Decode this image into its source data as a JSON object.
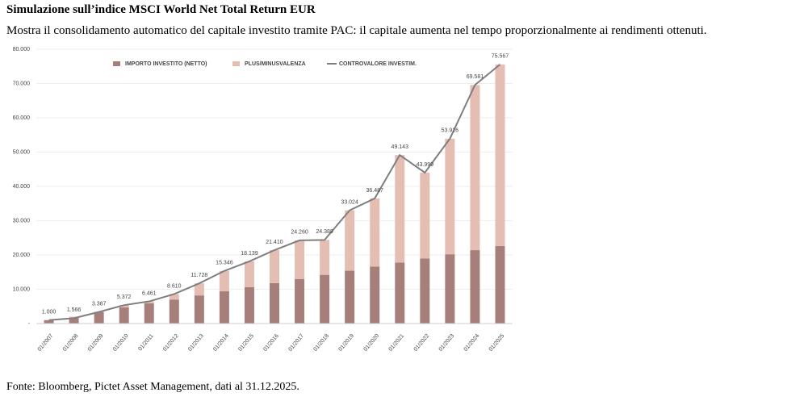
{
  "title": "Simulazione sull’indice MSCI World Net Total Return EUR",
  "subtitle": "Mostra il consolidamento automatico del capitale investito tramite PAC: il capitale aumenta nel tempo proporzionalmente ai rendimenti ottenuti.",
  "source": "Fonte: Bloomberg, Pictet Asset Management, dati al 31.12.2025.",
  "chart_data": {
    "type": "bar",
    "stacked": true,
    "grid": true,
    "legend": "top",
    "categories": [
      "01/2007",
      "01/2008",
      "01/2009",
      "01/2010",
      "01/2011",
      "01/2012",
      "01/2013",
      "01/2014",
      "01/2015",
      "01/2016",
      "01/2017",
      "01/2018",
      "01/2019",
      "01/2020",
      "01/2021",
      "01/2022",
      "01/2023",
      "01/2024",
      "01/2025"
    ],
    "series": [
      {
        "name": "IMPORTO INVESTITO (NETTO)",
        "type": "bar",
        "color": "#a67f7a",
        "values": [
          1000,
          2000,
          3387,
          4700,
          5900,
          7000,
          8200,
          9400,
          10600,
          11800,
          13000,
          14200,
          15400,
          16600,
          17800,
          19000,
          20200,
          21400,
          22600
        ]
      },
      {
        "name": "PLUS/MINUSVALENZA",
        "type": "bar",
        "color": "#e4beb3",
        "values": [
          0,
          -434,
          0,
          672,
          561,
          1610,
          3528,
          5946,
          7539,
          9610,
          11260,
          10188,
          17624,
          19887,
          31343,
          24999,
          33716,
          48181,
          52967
        ]
      },
      {
        "name": "CONTROVALORE INVESTIM.",
        "type": "line",
        "color": "#7f7f7f",
        "values": [
          1000,
          1566,
          3387,
          5372,
          6461,
          8610,
          11728,
          15346,
          18139,
          21410,
          24260,
          24388,
          33024,
          36487,
          49143,
          43999,
          53916,
          69581,
          75567
        ],
        "value_labels": [
          "1.000",
          "1.566",
          "3.387",
          "5.372",
          "6.461",
          "8.610",
          "11.728",
          "15.346",
          "18.139",
          "21.410",
          "24.260",
          "24.388",
          "33.024",
          "36.487",
          "49.143",
          "43.999",
          "53.916",
          "69.581",
          "75.567"
        ]
      }
    ],
    "ylim": [
      0,
      80000
    ],
    "yticks": [
      {
        "value": 0,
        "label": "-"
      },
      {
        "value": 10000,
        "label": "10.000"
      },
      {
        "value": 20000,
        "label": "20.000"
      },
      {
        "value": 30000,
        "label": "30.000"
      },
      {
        "value": 40000,
        "label": "40.000"
      },
      {
        "value": 50000,
        "label": "50.000"
      },
      {
        "value": 60000,
        "label": "60.000"
      },
      {
        "value": 70000,
        "label": "70.000"
      },
      {
        "value": 80000,
        "label": "80.000"
      }
    ]
  }
}
